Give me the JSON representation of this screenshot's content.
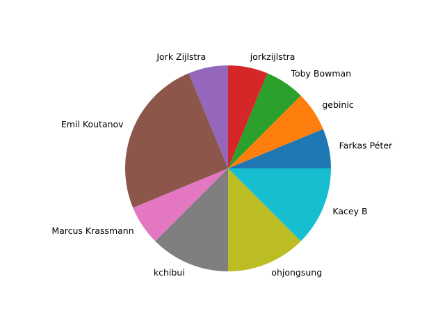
{
  "chart_data": {
    "type": "pie",
    "start_angle_deg": 0,
    "direction": "counterclockwise",
    "slices": [
      {
        "label": "Farkas Péter",
        "value": 1,
        "color": "#1f77b4"
      },
      {
        "label": "gebinic",
        "value": 1,
        "color": "#ff7f0e"
      },
      {
        "label": "Toby Bowman",
        "value": 1,
        "color": "#2ca02c"
      },
      {
        "label": "jorkzijlstra",
        "value": 1,
        "color": "#d62728"
      },
      {
        "label": "Jork Zijlstra",
        "value": 1,
        "color": "#9467bd"
      },
      {
        "label": "Emil Koutanov",
        "value": 4,
        "color": "#8c564b"
      },
      {
        "label": "Marcus Krassmann",
        "value": 1,
        "color": "#e377c2"
      },
      {
        "label": "kchibui",
        "value": 2,
        "color": "#7f7f7f"
      },
      {
        "label": "ohjongsung",
        "value": 2,
        "color": "#bcbd22"
      },
      {
        "label": "Kacey B",
        "value": 2,
        "color": "#17becf"
      }
    ]
  }
}
